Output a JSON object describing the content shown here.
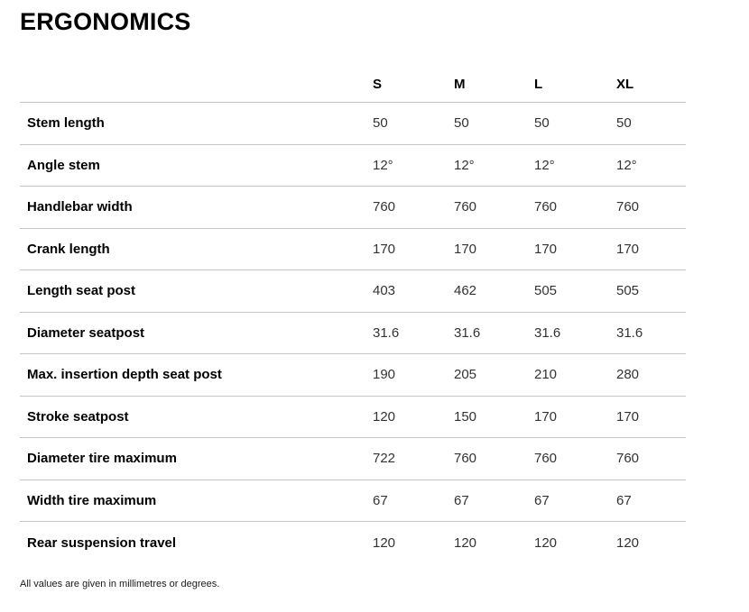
{
  "page": {
    "title": "ERGONOMICS",
    "footnote": "All values are given in millimetres or degrees."
  },
  "table": {
    "columns": [
      "S",
      "M",
      "L",
      "XL"
    ],
    "rows": [
      {
        "label": "Stem length",
        "values": [
          "50",
          "50",
          "50",
          "50"
        ]
      },
      {
        "label": "Angle stem",
        "values": [
          "12°",
          "12°",
          "12°",
          "12°"
        ]
      },
      {
        "label": "Handlebar width",
        "values": [
          "760",
          "760",
          "760",
          "760"
        ]
      },
      {
        "label": "Crank length",
        "values": [
          "170",
          "170",
          "170",
          "170"
        ]
      },
      {
        "label": "Length seat post",
        "values": [
          "403",
          "462",
          "505",
          "505"
        ]
      },
      {
        "label": "Diameter seatpost",
        "values": [
          "31.6",
          "31.6",
          "31.6",
          "31.6"
        ]
      },
      {
        "label": "Max. insertion depth seat post",
        "values": [
          "190",
          "205",
          "210",
          "280"
        ]
      },
      {
        "label": "Stroke seatpost",
        "values": [
          "120",
          "150",
          "170",
          "170"
        ]
      },
      {
        "label": "Diameter tire maximum",
        "values": [
          "722",
          "760",
          "760",
          "760"
        ]
      },
      {
        "label": "Width tire maximum",
        "values": [
          "67",
          "67",
          "67",
          "67"
        ]
      },
      {
        "label": "Rear suspension travel",
        "values": [
          "120",
          "120",
          "120",
          "120"
        ]
      }
    ]
  },
  "colors": {
    "divider": "#c5c5c5",
    "label_text": "#000000",
    "value_text": "#333333",
    "background": "#ffffff"
  }
}
